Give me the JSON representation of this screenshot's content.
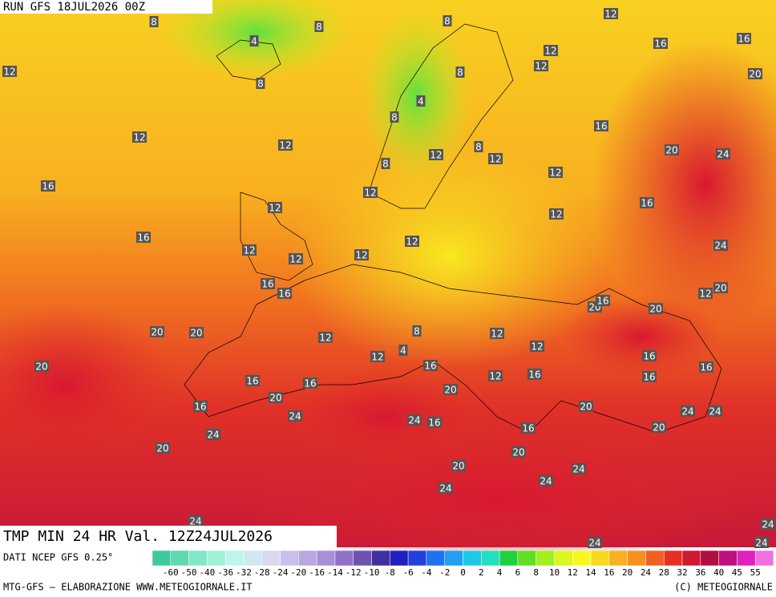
{
  "header": {
    "run": "RUN GFS 18JUL2026 00Z",
    "product": "TMP MIN 24 HR Val. 12Z24JUL2026"
  },
  "footer": {
    "source": "DATI NCEP GFS 0.25°",
    "credit": "MTG-GFS — ELABORAZIONE WWW.METEOGIORNALE.IT",
    "copyright": "(C) METEOGIORNALE"
  },
  "legend": {
    "labels": [
      "-60",
      "-50",
      "-40",
      "-36",
      "-32",
      "-28",
      "-24",
      "-20",
      "-16",
      "-14",
      "-12",
      "-10",
      "-8",
      "-6",
      "-4",
      "-2",
      "0",
      "2",
      "4",
      "6",
      "8",
      "10",
      "12",
      "14",
      "16",
      "20",
      "24",
      "28",
      "32",
      "36",
      "40",
      "45",
      "55"
    ],
    "colors": [
      "#40c8a0",
      "#60d8b0",
      "#80e8c8",
      "#a0f0d8",
      "#c0f4e8",
      "#d0e8f0",
      "#d8d8f0",
      "#c8c0e8",
      "#b8a8e0",
      "#a890d8",
      "#9070c8",
      "#7050b0",
      "#4030a0",
      "#2020c0",
      "#2040e0",
      "#2070f0",
      "#20a0f0",
      "#20c8e8",
      "#20e0c0",
      "#20d040",
      "#60e020",
      "#a0f020",
      "#d8f820",
      "#f8f820",
      "#f8d820",
      "#f8b020",
      "#f89020",
      "#f06020",
      "#e83020",
      "#d01830",
      "#b01040",
      "#c01080",
      "#e020c0",
      "#f070e0"
    ]
  },
  "map_labels": [
    8,
    4,
    8,
    8,
    12,
    16,
    16,
    12,
    8,
    12,
    12,
    8,
    4,
    20,
    8,
    16,
    12,
    12,
    20,
    24,
    12,
    8,
    12,
    8,
    12,
    16,
    12,
    16,
    12,
    12,
    16,
    12,
    24,
    12,
    12,
    12,
    16,
    16,
    12,
    20,
    20,
    16,
    20,
    20,
    20,
    12,
    8,
    12,
    12,
    4,
    12,
    16,
    20,
    16,
    16,
    16,
    12,
    16,
    16,
    16,
    20,
    20,
    16,
    20,
    24,
    24,
    16,
    16,
    24,
    24,
    20,
    24,
    20,
    20,
    20,
    24,
    24,
    24,
    24,
    24,
    24,
    24
  ]
}
